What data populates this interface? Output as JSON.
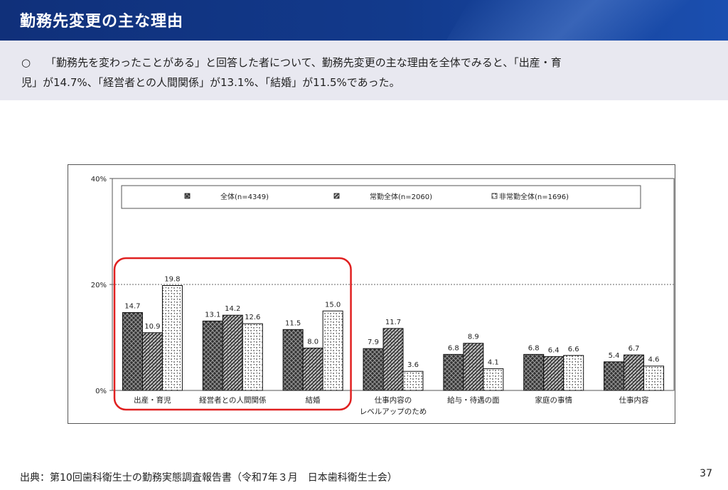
{
  "header": {
    "title": "勤務先変更の主な理由"
  },
  "summary": {
    "bullet": "○",
    "line1": "「勤務先を変わったことがある」と回答した者について、勤務先変更の主な理由を全体でみると、「出産・育",
    "line2": "児」が14.7%、「経営者との人間関係」が13.1%、「結婚」が11.5%であった。"
  },
  "chart_data": {
    "type": "bar",
    "title": "",
    "xlabel": "",
    "ylabel": "",
    "ylim": [
      0,
      40
    ],
    "yticks": [
      "0%",
      "20%",
      "40%"
    ],
    "gridline_at": 20,
    "legend_position": "top",
    "categories": [
      "出産・育児",
      "経営者との人間関係",
      "結婚",
      "仕事内容のレベルアップのため",
      "給与・待遇の面",
      "家庭の事情",
      "仕事内容"
    ],
    "category_label_lines": [
      [
        "出産・育児"
      ],
      [
        "経営者との人間関係"
      ],
      [
        "結婚"
      ],
      [
        "仕事内容の",
        "レベルアップのため"
      ],
      [
        "給与・待遇の面"
      ],
      [
        "家庭の事情"
      ],
      [
        "仕事内容"
      ]
    ],
    "series": [
      {
        "name": "全体(n=4349)",
        "values": [
          14.7,
          13.1,
          11.5,
          7.9,
          6.8,
          6.8,
          5.4
        ],
        "labels": [
          "14.7",
          "13.1",
          "11.5",
          "7.9",
          "6.8",
          "6.8",
          "5.4"
        ]
      },
      {
        "name": "常勤全体(n=2060)",
        "values": [
          10.9,
          14.2,
          8.0,
          11.7,
          8.9,
          6.4,
          6.7
        ],
        "labels": [
          "10.9",
          "14.2",
          "8.0",
          "11.7",
          "8.9",
          "6.4",
          "6.7"
        ]
      },
      {
        "name": "非常勤全体(n=1696)",
        "values": [
          19.8,
          12.6,
          15.0,
          3.6,
          4.1,
          6.6,
          4.6
        ],
        "labels": [
          "19.8",
          "12.6",
          "15.0",
          "3.6",
          "4.1",
          "6.6",
          "4.6"
        ]
      }
    ],
    "highlight": {
      "categories": [
        "出産・育児",
        "経営者との人間関係",
        "結婚"
      ],
      "color": "#e02020"
    }
  },
  "footer": {
    "source": "出典：第10回歯科衛生士の勤務実態調査報告書（令和7年３月　日本歯科衛生士会）",
    "page": "37"
  }
}
